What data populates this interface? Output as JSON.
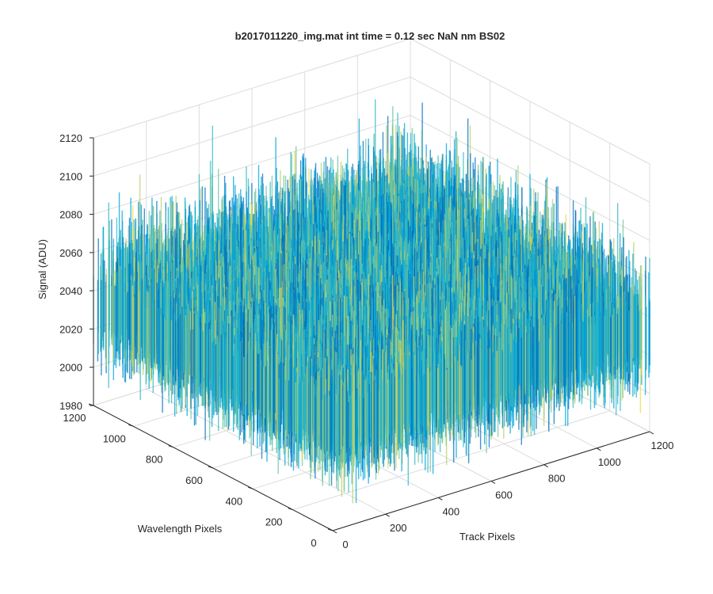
{
  "chart_data": {
    "type": "surface3d",
    "title": "b2017011220_img.mat int time = 0.12 sec  NaN nm BS02",
    "xlabel": "Track Pixels",
    "ylabel": "Wavelength Pixels",
    "zlabel": "Signal (ADU)",
    "xlim": [
      0,
      1200
    ],
    "ylim": [
      0,
      1200
    ],
    "zlim": [
      1980,
      2120
    ],
    "x_ticks": [
      "0",
      "200",
      "400",
      "600",
      "800",
      "1000",
      "1200"
    ],
    "y_ticks": [
      "0",
      "200",
      "400",
      "600",
      "800",
      "1000",
      "1200"
    ],
    "z_ticks": [
      "1980",
      "2000",
      "2020",
      "2040",
      "2060",
      "2080",
      "2100",
      "2120"
    ],
    "surface": {
      "mean": 2032,
      "noise_range": [
        1985,
        2115
      ],
      "colormap": [
        "#0072BD",
        "#00A3D9",
        "#2FB8C4",
        "#6CC3A0",
        "#B5CF6B",
        "#E8D84A"
      ]
    },
    "grid": true
  }
}
